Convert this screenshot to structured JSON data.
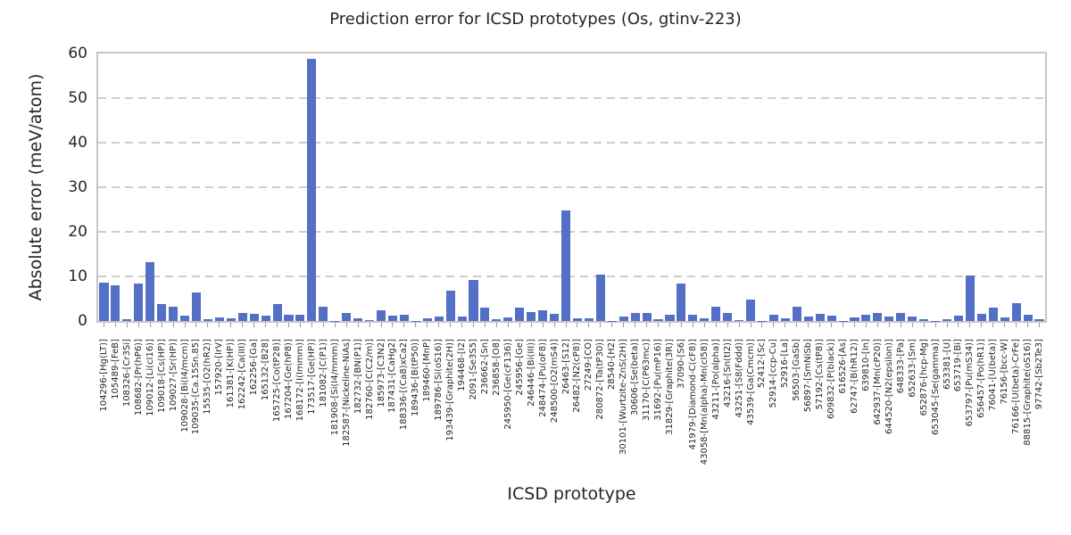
{
  "chart_data": {
    "type": "bar",
    "title": "Prediction error for ICSD prototypes (Os, gtinv-223)",
    "xlabel": "ICSD prototype",
    "ylabel": "Absolute error (meV/atom)",
    "ylim": [
      0,
      60
    ],
    "yticks": [
      0,
      10,
      20,
      30,
      40,
      50,
      60
    ],
    "grid": "horizontal-dashed",
    "legend": "none",
    "bar_color": "#5470c6",
    "categories": [
      "104296-[Hg(LT)]",
      "105489-[FeB]",
      "108326-[Cr3Si]",
      "108682-[Pr(hP6)]",
      "109012-[Li(cI16)]",
      "109018-[Cs(HP)]",
      "109027-[Sr(HP)]",
      "109028-[Bi(I4/mcm)]",
      "109035-[Ca.15Sn.85]",
      "15535-[O2(hR2)]",
      "157920-[IrV]",
      "161381-[K(HP)]",
      "162242-[Ca(III)]",
      "162256-[Ga]",
      "165132-[B28]",
      "165725-[Co(tP28)]",
      "167204-[Ge(hP8)]",
      "168172-[I(Immm)]",
      "173517-[Ge(HP)]",
      "181082-[C(P1)]",
      "181908-[Si(I4/mmm)]",
      "182587-[Nickeline-NiAs]",
      "182732-[BN(P1)]",
      "182760-[C(C2/m)]",
      "185973-[C3N2]",
      "187431-[CaHg2]",
      "188336-[(Ca8)xCa2]",
      "189436-[B(tP50)]",
      "189460-[MnP]",
      "189786-[Si(oS16)]",
      "193439-[Graphite(2H)]",
      "194468-[I2]",
      "2091-[Se3S5]",
      "236662-[Sn]",
      "236858-[O8]",
      "245950-[Ge(cF136)]",
      "245956-[Ge]",
      "246446-[Bi(III)]",
      "248474-[Pu(oF8)]",
      "248500-[O2(mS4)]",
      "26463-[S12]",
      "26482-[N2(cP8)]",
      "27249-[CO]",
      "280872-[Ta(tP30)]",
      "28540-[H2]",
      "30101-[Wurtzite-ZnS(2H)]",
      "30606-[Se(beta)]",
      "31170-[C(P63mc)]",
      "31692-[Pu(mP16)]",
      "31829-[Graphite(3R)]",
      "37090-[S6]",
      "41979-[Diamond-C(cF8)]",
      "43058-[Mn(alpha)-Mn(cI58)]",
      "43211-[Po(alpha)]",
      "43216-[Sn(tI2)]",
      "43251-[S8(Fddd)]",
      "43539-[Ga(Cmcm)]",
      "52412-[Sc]",
      "52914-[ccp-Cu]",
      "52916-[La]",
      "56503-[GaSb]",
      "56897-[SmNiSb]",
      "57192-[Cs(tP8)]",
      "609832-[P(black)]",
      "616526-[As]",
      "62747-[B(hR12)]",
      "639810-[In]",
      "642937-[Mn(cP20)]",
      "644520-[N2(epsilon)]",
      "648333-[Pa]",
      "652633-[Sm]",
      "652876-[hcp-Mg]",
      "653045-[Se(gamma)]",
      "653381-[U]",
      "653719-[Bi]",
      "653797-[Pu(mS34)]",
      "656457-[Po(hR1)]",
      "76041-[U(beta)]",
      "76156-[bcc-W]",
      "76166-[U(beta)-CrFe]",
      "88815-[Graphite(oS16)]",
      "97742-[Sb2Te3]"
    ],
    "values": [
      8.6,
      8.0,
      0.5,
      8.5,
      13.3,
      3.9,
      3.2,
      1.2,
      6.5,
      0.5,
      0.9,
      0.6,
      1.8,
      1.7,
      1.3,
      3.8,
      1.5,
      1.5,
      58.8,
      3.3,
      0.1,
      1.9,
      0.6,
      0.15,
      2.4,
      1.3,
      1.5,
      0.1,
      0.7,
      1.0,
      6.9,
      1.0,
      9.3,
      3.1,
      0.5,
      0.8,
      3.0,
      2.1,
      2.5,
      1.7,
      24.8,
      0.7,
      0.6,
      10.5,
      0.1,
      1.1,
      1.9,
      1.8,
      0.5,
      1.5,
      8.5,
      1.5,
      0.7,
      3.2,
      1.9,
      0.2,
      4.8,
      0.1,
      1.4,
      0.6,
      3.3,
      1.1,
      1.7,
      1.3,
      0.1,
      0.8,
      1.5,
      1.8,
      1.1,
      1.9,
      1.0,
      0.4,
      0.1,
      0.5,
      1.3,
      10.2,
      1.7,
      3.0,
      0.9,
      4.0,
      1.5,
      0.5
    ]
  }
}
